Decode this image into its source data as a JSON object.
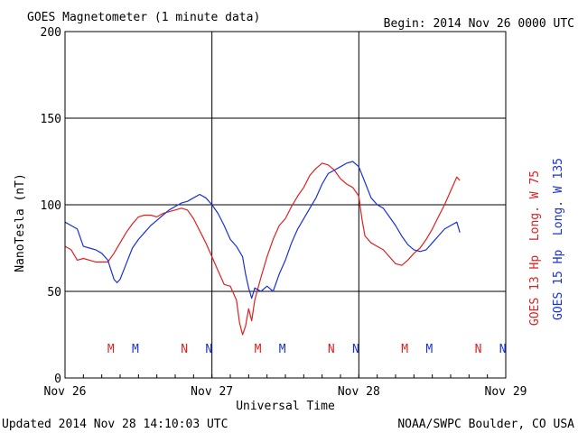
{
  "header": {
    "title": "GOES Magnetometer (1 minute data)",
    "begin": "Begin:  2014 Nov 26 0000 UTC"
  },
  "footer": {
    "updated": "Updated 2014 Nov 28 14:10:03 UTC",
    "credit": "NOAA/SWPC Boulder, CO USA"
  },
  "chart_data": {
    "type": "line",
    "title": "GOES Magnetometer (1 minute data)",
    "xlabel": "Universal Time",
    "ylabel": "NanoTesla (nT)",
    "xlim": [
      0,
      72
    ],
    "ylim": [
      0,
      200
    ],
    "x_unit": "hours since 2014 Nov 26 0000 UTC",
    "x_ticks": [
      0,
      24,
      48,
      72
    ],
    "x_tick_labels": [
      "Nov 26",
      "Nov 27",
      "Nov 28",
      "Nov 29"
    ],
    "y_ticks": [
      0,
      50,
      100,
      150,
      200
    ],
    "y_tick_labels": [
      "0",
      "50",
      "100",
      "150",
      "200"
    ],
    "grid": true,
    "legend_position": "right, vertical",
    "series": [
      {
        "name": "GOES 13 Hp  Long. W 75",
        "color": "#e02020",
        "points": [
          [
            0,
            76
          ],
          [
            1,
            74
          ],
          [
            2,
            68
          ],
          [
            3,
            69
          ],
          [
            4,
            68
          ],
          [
            5,
            67
          ],
          [
            6,
            67
          ],
          [
            7,
            67
          ],
          [
            8,
            72
          ],
          [
            9,
            78
          ],
          [
            10,
            84
          ],
          [
            11,
            89
          ],
          [
            12,
            93
          ],
          [
            13,
            94
          ],
          [
            14,
            94
          ],
          [
            15,
            93
          ],
          [
            16,
            95
          ],
          [
            17,
            96
          ],
          [
            18,
            97
          ],
          [
            19,
            98
          ],
          [
            20,
            97
          ],
          [
            21,
            92
          ],
          [
            22,
            85
          ],
          [
            23,
            78
          ],
          [
            24,
            70
          ],
          [
            25,
            62
          ],
          [
            26,
            54
          ],
          [
            27,
            53
          ],
          [
            28,
            45
          ],
          [
            28.5,
            32
          ],
          [
            29,
            25
          ],
          [
            29.5,
            30
          ],
          [
            30,
            40
          ],
          [
            30.5,
            33
          ],
          [
            31,
            45
          ],
          [
            32,
            58
          ],
          [
            33,
            70
          ],
          [
            34,
            80
          ],
          [
            35,
            88
          ],
          [
            36,
            92
          ],
          [
            37,
            99
          ],
          [
            38,
            105
          ],
          [
            39,
            110
          ],
          [
            40,
            117
          ],
          [
            41,
            121
          ],
          [
            42,
            124
          ],
          [
            43,
            123
          ],
          [
            44,
            120
          ],
          [
            45,
            115
          ],
          [
            46,
            112
          ],
          [
            47,
            110
          ],
          [
            48,
            105
          ],
          [
            48.5,
            92
          ],
          [
            49,
            82
          ],
          [
            50,
            78
          ],
          [
            51,
            76
          ],
          [
            52,
            74
          ],
          [
            53,
            70
          ],
          [
            54,
            66
          ],
          [
            55,
            65
          ],
          [
            56,
            68
          ],
          [
            57,
            72
          ],
          [
            58,
            75
          ],
          [
            59,
            80
          ],
          [
            60,
            86
          ],
          [
            61,
            93
          ],
          [
            62,
            100
          ],
          [
            63,
            108
          ],
          [
            64,
            116
          ],
          [
            64.5,
            114
          ]
        ]
      },
      {
        "name": "GOES 15 Hp  Long. W 135",
        "color": "#1a30d8",
        "points": [
          [
            0,
            90
          ],
          [
            1,
            88
          ],
          [
            2,
            86
          ],
          [
            3,
            76
          ],
          [
            4,
            75
          ],
          [
            5,
            74
          ],
          [
            6,
            72
          ],
          [
            7,
            68
          ],
          [
            8,
            57
          ],
          [
            8.5,
            55
          ],
          [
            9,
            57
          ],
          [
            10,
            66
          ],
          [
            11,
            75
          ],
          [
            12,
            80
          ],
          [
            13,
            84
          ],
          [
            14,
            88
          ],
          [
            15,
            91
          ],
          [
            16,
            94
          ],
          [
            17,
            97
          ],
          [
            18,
            99
          ],
          [
            19,
            101
          ],
          [
            20,
            102
          ],
          [
            21,
            104
          ],
          [
            22,
            106
          ],
          [
            23,
            104
          ],
          [
            24,
            100
          ],
          [
            25,
            95
          ],
          [
            26,
            88
          ],
          [
            27,
            80
          ],
          [
            28,
            76
          ],
          [
            29,
            70
          ],
          [
            29.5,
            60
          ],
          [
            30,
            52
          ],
          [
            30.5,
            46
          ],
          [
            31,
            52
          ],
          [
            32,
            50
          ],
          [
            33,
            53
          ],
          [
            34,
            50
          ],
          [
            35,
            60
          ],
          [
            36,
            68
          ],
          [
            37,
            78
          ],
          [
            38,
            86
          ],
          [
            39,
            92
          ],
          [
            40,
            98
          ],
          [
            41,
            104
          ],
          [
            42,
            112
          ],
          [
            43,
            118
          ],
          [
            44,
            120
          ],
          [
            45,
            122
          ],
          [
            46,
            124
          ],
          [
            47,
            125
          ],
          [
            48,
            122
          ],
          [
            49,
            113
          ],
          [
            50,
            104
          ],
          [
            51,
            100
          ],
          [
            52,
            98
          ],
          [
            53,
            93
          ],
          [
            54,
            88
          ],
          [
            55,
            82
          ],
          [
            56,
            77
          ],
          [
            57,
            74
          ],
          [
            58,
            73
          ],
          [
            59,
            74
          ],
          [
            60,
            78
          ],
          [
            61,
            82
          ],
          [
            62,
            86
          ],
          [
            63,
            88
          ],
          [
            64,
            90
          ],
          [
            64.5,
            84
          ]
        ]
      }
    ],
    "markers": [
      {
        "label": "M",
        "x": 7.5,
        "series": 0
      },
      {
        "label": "M",
        "x": 11.5,
        "series": 1
      },
      {
        "label": "N",
        "x": 19.5,
        "series": 0
      },
      {
        "label": "N",
        "x": 23.5,
        "series": 1
      },
      {
        "label": "M",
        "x": 31.5,
        "series": 0
      },
      {
        "label": "M",
        "x": 35.5,
        "series": 1
      },
      {
        "label": "N",
        "x": 43.5,
        "series": 0
      },
      {
        "label": "N",
        "x": 47.5,
        "series": 1
      },
      {
        "label": "M",
        "x": 55.5,
        "series": 0
      },
      {
        "label": "M",
        "x": 59.5,
        "series": 1
      },
      {
        "label": "N",
        "x": 67.5,
        "series": 0
      },
      {
        "label": "N",
        "x": 71.5,
        "series": 1
      }
    ]
  }
}
